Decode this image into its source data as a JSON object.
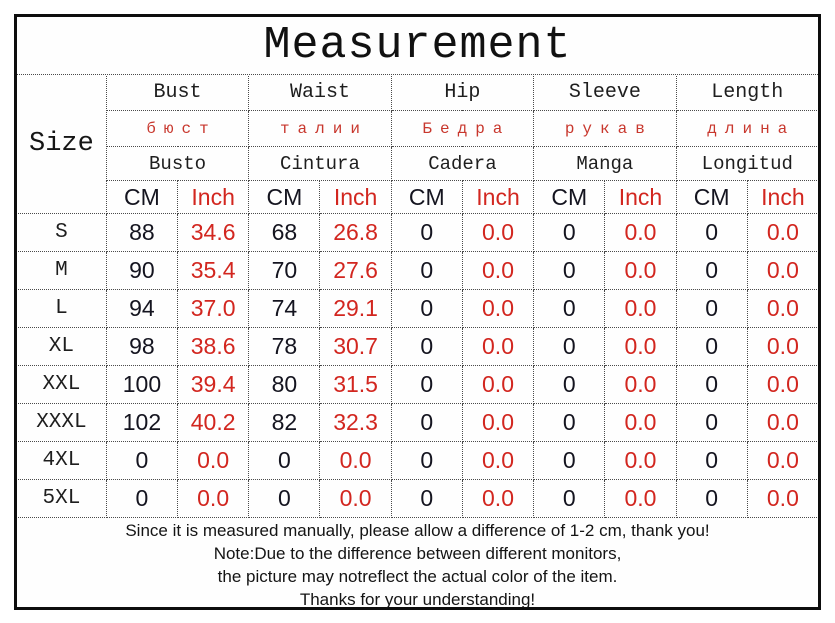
{
  "title": "Measurement",
  "colors": {
    "red_accent": "#d2261f",
    "russian_red": "#c8372d",
    "text": "#1b1b1b",
    "border_solid": "#0d0d0d",
    "border_dotted": "#4a4a4a"
  },
  "table": {
    "size_header": "Size",
    "unit_cm": "CM",
    "unit_inch": "Inch",
    "columns": [
      {
        "en": "Bust",
        "ru": "бюст",
        "es": "Busto"
      },
      {
        "en": "Waist",
        "ru": "талии",
        "es": "Cintura"
      },
      {
        "en": "Hip",
        "ru": "Бедра",
        "es": "Cadera"
      },
      {
        "en": "Sleeve",
        "ru": "рукав",
        "es": "Manga"
      },
      {
        "en": "Length",
        "ru": "длина",
        "es": "Longitud"
      }
    ],
    "rows": [
      {
        "size": "S",
        "values": [
          "88",
          "34.6",
          "68",
          "26.8",
          "0",
          "0.0",
          "0",
          "0.0",
          "0",
          "0.0"
        ]
      },
      {
        "size": "M",
        "values": [
          "90",
          "35.4",
          "70",
          "27.6",
          "0",
          "0.0",
          "0",
          "0.0",
          "0",
          "0.0"
        ]
      },
      {
        "size": "L",
        "values": [
          "94",
          "37.0",
          "74",
          "29.1",
          "0",
          "0.0",
          "0",
          "0.0",
          "0",
          "0.0"
        ]
      },
      {
        "size": "XL",
        "values": [
          "98",
          "38.6",
          "78",
          "30.7",
          "0",
          "0.0",
          "0",
          "0.0",
          "0",
          "0.0"
        ]
      },
      {
        "size": "XXL",
        "values": [
          "100",
          "39.4",
          "80",
          "31.5",
          "0",
          "0.0",
          "0",
          "0.0",
          "0",
          "0.0"
        ]
      },
      {
        "size": "XXXL",
        "values": [
          "102",
          "40.2",
          "82",
          "32.3",
          "0",
          "0.0",
          "0",
          "0.0",
          "0",
          "0.0"
        ]
      },
      {
        "size": "4XL",
        "values": [
          "0",
          "0.0",
          "0",
          "0.0",
          "0",
          "0.0",
          "0",
          "0.0",
          "0",
          "0.0"
        ]
      },
      {
        "size": "5XL",
        "values": [
          "0",
          "0.0",
          "0",
          "0.0",
          "0",
          "0.0",
          "0",
          "0.0",
          "0",
          "0.0"
        ]
      }
    ]
  },
  "notes": [
    "Since it is measured manually, please allow a difference of 1-2 cm, thank you!",
    "Note:Due to the difference between different monitors,",
    "the picture may notreflect the actual color of the item.",
    "Thanks for your understanding!"
  ]
}
